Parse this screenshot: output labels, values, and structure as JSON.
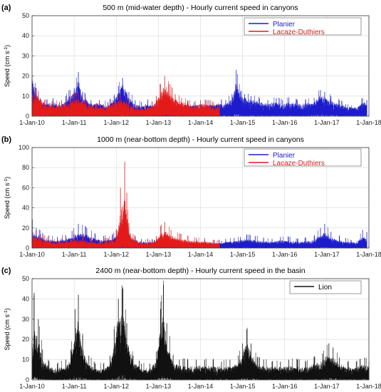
{
  "colors": {
    "Planier": "#1c1ccc",
    "Lacaze-Duthiers": "#e31a1a",
    "Lion": "#111111"
  },
  "chart_data": [
    {
      "type": "line",
      "panel_label": "(a)",
      "title": "500 m (mid-water depth) - Hourly current speed in canyons",
      "ylabel": "Speed (cm s",
      "ylabel_sup": "-1",
      "ylabel_close": ")",
      "xlabel": "",
      "ylim": [
        0,
        50
      ],
      "yticks": [
        "0",
        "10",
        "20",
        "30",
        "40",
        "50"
      ],
      "xticks": [
        "1-Jan-10",
        "1-Jan-11",
        "1-Jan-12",
        "1-Jan-13",
        "1-Jan-14",
        "1-Jan-15",
        "1-Jan-16",
        "1-Jan-17",
        "1-Jan-18"
      ],
      "xlim": [
        2010.0,
        2018.0
      ],
      "grid": true,
      "legend_position": "top-right",
      "series": [
        {
          "name": "Planier",
          "color": "#1c1ccc",
          "t": [
            2010.0,
            2010.1,
            2010.2,
            2010.35,
            2010.5,
            2010.65,
            2010.8,
            2010.9,
            2011.0,
            2011.1,
            2011.2,
            2011.4,
            2011.6,
            2011.8,
            2011.95,
            2012.05,
            2012.15,
            2012.3,
            2012.45,
            2012.6,
            2012.75,
            2012.9,
            2014.5,
            2014.6,
            2014.75,
            2014.85,
            2014.95,
            2015.05,
            2015.2,
            2015.4,
            2015.6,
            2015.8,
            2015.95,
            2016.1,
            2016.3,
            2016.5,
            2016.7,
            2016.85,
            2016.95,
            2017.1,
            2017.3,
            2017.45,
            2017.7,
            2017.85,
            2017.95
          ],
          "v": [
            18,
            10,
            6,
            5,
            6,
            4,
            6,
            9,
            10,
            16,
            8,
            5,
            5,
            4,
            7,
            10,
            14,
            8,
            5,
            4,
            5,
            4,
            5,
            5,
            7,
            14,
            9,
            8,
            7,
            6,
            5,
            6,
            5,
            6,
            5,
            5,
            6,
            9,
            8,
            7,
            5,
            4,
            4,
            6,
            5
          ],
          "peak": [
            19,
            14,
            9,
            8,
            9,
            7,
            10,
            13,
            14,
            22,
            12,
            8,
            8,
            7,
            10,
            15,
            19,
            12,
            8,
            7,
            8,
            6,
            8,
            8,
            11,
            23,
            12,
            11,
            10,
            9,
            8,
            9,
            8,
            9,
            8,
            8,
            9,
            13,
            12,
            10,
            8,
            6,
            null,
            9,
            8
          ]
        },
        {
          "name": "Lacaze-Duthiers",
          "color": "#e31a1a",
          "t": [
            2010.0,
            2010.15,
            2010.3,
            2010.5,
            2010.7,
            2010.9,
            2011.1,
            2011.3,
            2011.5,
            2011.7,
            2011.9,
            2012.1,
            2012.3,
            2012.5,
            2012.7,
            2012.85,
            2012.95,
            2013.05,
            2013.15,
            2013.25,
            2013.4,
            2013.55,
            2013.7,
            2013.85,
            2014.0,
            2014.15,
            2014.3,
            2014.45
          ],
          "v": [
            10,
            8,
            5,
            4,
            5,
            6,
            8,
            5,
            4,
            4,
            5,
            7,
            5,
            3,
            3,
            4,
            6,
            9,
            12,
            10,
            7,
            6,
            5,
            4,
            5,
            5,
            4,
            4
          ],
          "peak": [
            15,
            12,
            8,
            7,
            8,
            10,
            12,
            8,
            6,
            6,
            8,
            11,
            8,
            5,
            6,
            7,
            10,
            16,
            20,
            16,
            11,
            9,
            8,
            7,
            8,
            8,
            7,
            6
          ]
        }
      ]
    },
    {
      "type": "line",
      "panel_label": "(b)",
      "title": "1000 m (near-bottom depth) - Hourly current speed in canyons",
      "ylabel": "Speed (cm s",
      "ylabel_sup": "-1",
      "ylabel_close": ")",
      "xlabel": "",
      "ylim": [
        0,
        100
      ],
      "yticks": [
        "0",
        "20",
        "40",
        "60",
        "80",
        "100"
      ],
      "xticks": [
        "1-Jan-10",
        "1-Jan-11",
        "1-Jan-12",
        "1-Jan-13",
        "1-Jan-14",
        "1-Jan-15",
        "1-Jan-16",
        "1-Jan-17",
        "1-Jan-18"
      ],
      "xlim": [
        2010.0,
        2018.0
      ],
      "grid": true,
      "legend_position": "top-right",
      "series": [
        {
          "name": "Planier",
          "color": "#1c1ccc",
          "t": [
            2010.0,
            2010.1,
            2010.25,
            2010.4,
            2010.6,
            2010.8,
            2010.95,
            2011.1,
            2011.3,
            2011.5,
            2011.7,
            2011.9,
            2012.0,
            2012.1,
            2012.2,
            2012.3,
            2012.45,
            2012.6,
            2012.75,
            2012.9,
            2014.5,
            2014.6,
            2014.8,
            2014.95,
            2015.1,
            2015.3,
            2015.5,
            2015.7,
            2015.9,
            2016.1,
            2016.3,
            2016.5,
            2016.7,
            2016.85,
            2016.95,
            2017.1,
            2017.3,
            2017.45,
            2017.7,
            2017.85,
            2017.95
          ],
          "v": [
            14,
            10,
            8,
            6,
            6,
            7,
            9,
            12,
            10,
            7,
            6,
            7,
            9,
            15,
            12,
            8,
            6,
            5,
            5,
            4,
            4,
            5,
            5,
            6,
            7,
            6,
            5,
            5,
            6,
            6,
            5,
            5,
            6,
            10,
            12,
            8,
            6,
            5,
            5,
            8,
            7
          ],
          "peak": [
            28,
            20,
            15,
            12,
            11,
            13,
            17,
            24,
            20,
            14,
            12,
            13,
            17,
            32,
            22,
            15,
            11,
            9,
            9,
            8,
            7,
            9,
            10,
            11,
            13,
            12,
            10,
            9,
            11,
            11,
            9,
            10,
            12,
            20,
            24,
            16,
            12,
            10,
            null,
            18,
            16
          ]
        },
        {
          "name": "Lacaze-Duthiers",
          "color": "#e31a1a",
          "t": [
            2010.0,
            2010.2,
            2010.4,
            2010.6,
            2010.8,
            2011.0,
            2011.2,
            2011.4,
            2011.6,
            2011.8,
            2012.0,
            2012.1,
            2012.2,
            2012.25,
            2012.3,
            2012.4,
            2012.6,
            2012.8,
            2012.95,
            2013.05,
            2013.15,
            2013.3,
            2013.5,
            2013.7,
            2013.9,
            2014.1,
            2014.3,
            2014.45
          ],
          "v": [
            10,
            7,
            5,
            4,
            5,
            7,
            6,
            5,
            4,
            5,
            8,
            20,
            35,
            25,
            12,
            7,
            4,
            4,
            6,
            10,
            12,
            9,
            7,
            6,
            5,
            5,
            4,
            4
          ],
          "peak": [
            20,
            14,
            10,
            8,
            10,
            14,
            12,
            10,
            8,
            10,
            18,
            60,
            86,
            55,
            25,
            14,
            8,
            8,
            12,
            22,
            26,
            18,
            14,
            12,
            10,
            10,
            8,
            8
          ]
        }
      ]
    },
    {
      "type": "line",
      "panel_label": "(c)",
      "title": "2400 m (near-bottom depth) - Hourly current speed in the basin",
      "ylabel": "Speed (cm s",
      "ylabel_sup": "-1",
      "ylabel_close": ")",
      "xlabel": "",
      "ylim": [
        0,
        50
      ],
      "yticks": [
        "0",
        "10",
        "20",
        "30",
        "40",
        "50"
      ],
      "xticks": [
        "1-Jan-10",
        "1-Jan-11",
        "1-Jan-12",
        "1-Jan-13",
        "1-Jan-14",
        "1-Jan-15",
        "1-Jan-16",
        "1-Jan-17",
        "1-Jan-18"
      ],
      "xlim": [
        2010.0,
        2018.0
      ],
      "grid": true,
      "legend_position": "top-right",
      "series": [
        {
          "name": "Lion",
          "color": "#111111",
          "t": [
            2010.0,
            2010.05,
            2010.15,
            2010.25,
            2010.4,
            2010.6,
            2010.8,
            2010.92,
            2011.02,
            2011.1,
            2011.2,
            2011.35,
            2011.5,
            2011.7,
            2011.85,
            2011.95,
            2012.05,
            2012.15,
            2012.25,
            2012.4,
            2012.6,
            2012.8,
            2012.95,
            2013.05,
            2013.12,
            2013.2,
            2013.35,
            2013.5,
            2013.7,
            2013.9,
            2014.1,
            2014.3,
            2014.5,
            2014.7,
            2014.9,
            2015.0,
            2015.1,
            2015.2,
            2015.35,
            2015.5,
            2015.7,
            2015.9,
            2016.1,
            2016.3,
            2016.5,
            2016.7,
            2016.9,
            2017.05,
            2017.15,
            2017.3,
            2017.5,
            2017.7,
            2017.9,
            2018.0
          ],
          "v": [
            10,
            22,
            15,
            8,
            5,
            4,
            5,
            8,
            18,
            24,
            12,
            6,
            4,
            4,
            6,
            14,
            25,
            30,
            15,
            7,
            4,
            4,
            8,
            20,
            28,
            14,
            7,
            5,
            5,
            5,
            5,
            5,
            5,
            5,
            6,
            10,
            15,
            10,
            6,
            5,
            5,
            5,
            5,
            5,
            5,
            6,
            7,
            10,
            9,
            6,
            5,
            5,
            6,
            5
          ],
          "peak": [
            18,
            43,
            30,
            15,
            9,
            8,
            10,
            15,
            35,
            42,
            22,
            12,
            8,
            8,
            12,
            25,
            40,
            45,
            28,
            12,
            8,
            8,
            14,
            35,
            47,
            28,
            12,
            10,
            10,
            10,
            10,
            10,
            9,
            10,
            12,
            18,
            25,
            18,
            11,
            10,
            9,
            9,
            10,
            10,
            9,
            11,
            13,
            18,
            16,
            11,
            9,
            9,
            11,
            9
          ]
        }
      ]
    }
  ]
}
